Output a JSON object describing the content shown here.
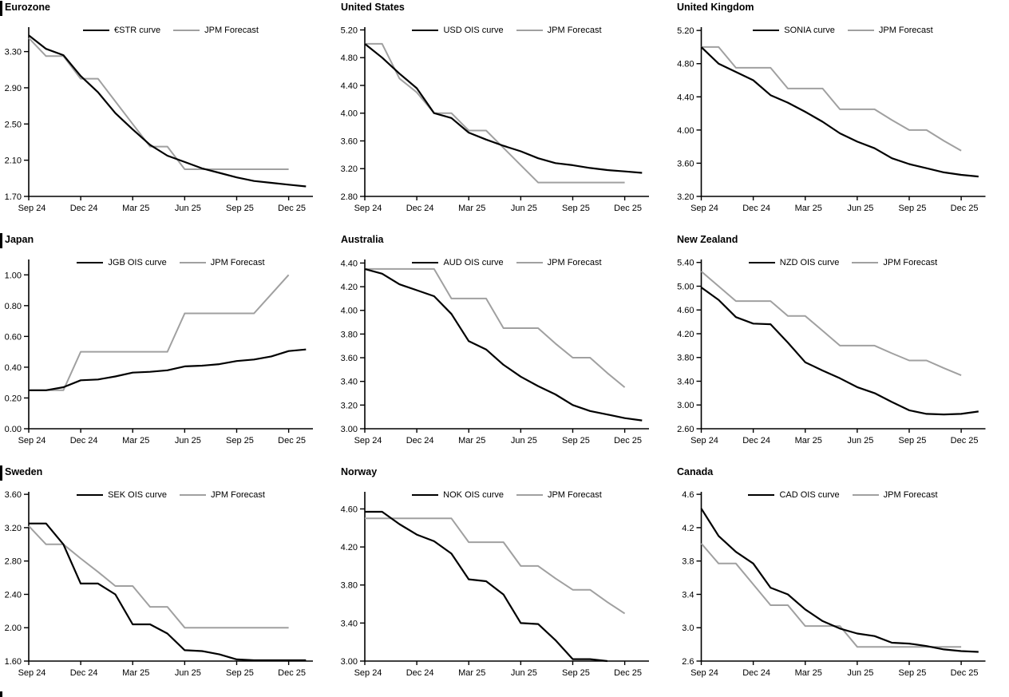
{
  "page": {
    "background": "#ffffff",
    "series_black_color": "#000000",
    "series_gray_color": "#a0a0a0"
  },
  "chart_data": [
    {
      "type": "line",
      "title": "Eurozone",
      "x_note": "monthly points starting Sep 2024",
      "x_tick_labels": [
        "Sep 24",
        "Dec 24",
        "Mar 25",
        "Jun 25",
        "Sep 25",
        "Dec 25"
      ],
      "x_tick_positions": [
        0,
        3,
        6,
        9,
        12,
        15
      ],
      "ylim": [
        1.7,
        3.57
      ],
      "y_tick_labels": [
        "1.70",
        "2.10",
        "2.50",
        "2.90",
        "3.30"
      ],
      "series": [
        {
          "name": "€STR curve",
          "color": "#000000",
          "values": [
            3.48,
            3.33,
            3.26,
            3.03,
            2.85,
            2.62,
            2.44,
            2.27,
            2.15,
            2.08,
            2.01,
            1.96,
            1.91,
            1.87,
            1.85,
            1.83,
            1.81
          ]
        },
        {
          "name": "JPM Forecast",
          "color": "#a0a0a0",
          "values": [
            3.45,
            3.25,
            3.25,
            3.0,
            3.0,
            2.75,
            2.5,
            2.25,
            2.25,
            2.0,
            2.0,
            2.0,
            2.0,
            2.0,
            2.0,
            2.0
          ]
        }
      ]
    },
    {
      "type": "line",
      "title": "United States",
      "x_note": "monthly points starting Sep 2024",
      "x_tick_labels": [
        "Sep 24",
        "Dec 24",
        "Mar 25",
        "Jun 25",
        "Sep 25",
        "Dec 25"
      ],
      "x_tick_positions": [
        0,
        3,
        6,
        9,
        12,
        15
      ],
      "ylim": [
        2.8,
        5.24
      ],
      "y_tick_labels": [
        "2.80",
        "3.20",
        "3.60",
        "4.00",
        "4.40",
        "4.80",
        "5.20"
      ],
      "series": [
        {
          "name": "USD OIS curve",
          "color": "#000000",
          "values": [
            5.0,
            4.8,
            4.57,
            4.36,
            4.0,
            3.93,
            3.72,
            3.62,
            3.53,
            3.45,
            3.35,
            3.28,
            3.25,
            3.21,
            3.18,
            3.16,
            3.14
          ]
        },
        {
          "name": "JPM Forecast",
          "color": "#a0a0a0",
          "values": [
            5.0,
            5.0,
            4.5,
            4.3,
            4.0,
            4.0,
            3.75,
            3.75,
            3.5,
            3.25,
            3.0,
            3.0,
            3.0,
            3.0,
            3.0,
            3.0
          ]
        }
      ]
    },
    {
      "type": "line",
      "title": "United Kingdom",
      "x_note": "monthly points starting Sep 2024",
      "x_tick_labels": [
        "Sep 24",
        "Dec 24",
        "Mar 25",
        "Jun 25",
        "Sep 25",
        "Dec 25"
      ],
      "x_tick_positions": [
        0,
        3,
        6,
        9,
        12,
        15
      ],
      "ylim": [
        3.2,
        5.24
      ],
      "y_tick_labels": [
        "3.20",
        "3.60",
        "4.00",
        "4.40",
        "4.80",
        "5.20"
      ],
      "series": [
        {
          "name": "SONIA curve",
          "color": "#000000",
          "values": [
            5.0,
            4.8,
            4.7,
            4.6,
            4.42,
            4.33,
            4.22,
            4.1,
            3.96,
            3.86,
            3.78,
            3.66,
            3.59,
            3.54,
            3.49,
            3.46,
            3.44
          ]
        },
        {
          "name": "JPM Forecast",
          "color": "#a0a0a0",
          "values": [
            5.0,
            5.0,
            4.75,
            4.75,
            4.75,
            4.5,
            4.5,
            4.5,
            4.25,
            4.25,
            4.25,
            4.12,
            4.0,
            4.0,
            3.87,
            3.75
          ]
        }
      ]
    },
    {
      "type": "line",
      "title": "Japan",
      "x_note": "monthly points starting Sep 2024",
      "x_tick_labels": [
        "Sep 24",
        "Dec 24",
        "Mar 25",
        "Jun 25",
        "Sep 25",
        "Dec 25"
      ],
      "x_tick_positions": [
        0,
        3,
        6,
        9,
        12,
        15
      ],
      "ylim": [
        0.0,
        1.1
      ],
      "y_tick_labels": [
        "0.00",
        "0.20",
        "0.40",
        "0.60",
        "0.80",
        "1.00"
      ],
      "series": [
        {
          "name": "JGB OIS curve",
          "color": "#000000",
          "values": [
            0.25,
            0.25,
            0.27,
            0.315,
            0.32,
            0.34,
            0.365,
            0.37,
            0.38,
            0.405,
            0.41,
            0.42,
            0.44,
            0.45,
            0.47,
            0.505,
            0.515
          ]
        },
        {
          "name": "JPM Forecast",
          "color": "#a0a0a0",
          "values": [
            0.25,
            0.25,
            0.25,
            0.5,
            0.5,
            0.5,
            0.5,
            0.5,
            0.5,
            0.75,
            0.75,
            0.75,
            0.75,
            0.75,
            0.875,
            1.0
          ]
        }
      ]
    },
    {
      "type": "line",
      "title": "Australia",
      "x_note": "monthly points starting Sep 2024",
      "x_tick_labels": [
        "Sep 24",
        "Dec 24",
        "Mar 25",
        "Jun 25",
        "Sep 25",
        "Dec 25"
      ],
      "x_tick_positions": [
        0,
        3,
        6,
        9,
        12,
        15
      ],
      "ylim": [
        3.0,
        4.43
      ],
      "y_tick_labels": [
        "3.00",
        "3.20",
        "3.40",
        "3.60",
        "3.80",
        "4.00",
        "4.20",
        "4.40"
      ],
      "series": [
        {
          "name": "AUD OIS curve",
          "color": "#000000",
          "values": [
            4.35,
            4.31,
            4.22,
            4.17,
            4.12,
            3.97,
            3.74,
            3.67,
            3.54,
            3.44,
            3.36,
            3.29,
            3.2,
            3.15,
            3.12,
            3.09,
            3.07
          ]
        },
        {
          "name": "JPM Forecast",
          "color": "#a0a0a0",
          "values": [
            4.35,
            4.35,
            4.35,
            4.35,
            4.35,
            4.1,
            4.1,
            4.1,
            3.85,
            3.85,
            3.85,
            3.72,
            3.6,
            3.6,
            3.47,
            3.35
          ]
        }
      ]
    },
    {
      "type": "line",
      "title": "New Zealand",
      "x_note": "monthly points starting Sep 2024",
      "x_tick_labels": [
        "Sep 24",
        "Dec 24",
        "Mar 25",
        "Jun 25",
        "Sep 25",
        "Dec 25"
      ],
      "x_tick_positions": [
        0,
        3,
        6,
        9,
        12,
        15
      ],
      "ylim": [
        2.6,
        5.45
      ],
      "y_tick_labels": [
        "2.60",
        "3.00",
        "3.40",
        "3.80",
        "4.20",
        "4.60",
        "5.00",
        "5.40"
      ],
      "series": [
        {
          "name": "NZD OIS curve",
          "color": "#000000",
          "values": [
            4.98,
            4.77,
            4.48,
            4.37,
            4.36,
            4.05,
            3.72,
            3.58,
            3.45,
            3.3,
            3.2,
            3.05,
            2.91,
            2.85,
            2.84,
            2.85,
            2.89
          ]
        },
        {
          "name": "JPM Forecast",
          "color": "#a0a0a0",
          "values": [
            5.25,
            5.0,
            4.75,
            4.75,
            4.75,
            4.5,
            4.5,
            4.25,
            4.0,
            4.0,
            4.0,
            3.87,
            3.75,
            3.75,
            3.62,
            3.5
          ]
        }
      ]
    },
    {
      "type": "line",
      "title": "Sweden",
      "x_note": "monthly points starting Sep 2024",
      "x_tick_labels": [
        "Sep 24",
        "Dec 24",
        "Mar 25",
        "Jun 25",
        "Sep 25",
        "Dec 25"
      ],
      "x_tick_positions": [
        0,
        3,
        6,
        9,
        12,
        15
      ],
      "ylim": [
        1.6,
        3.63
      ],
      "y_tick_labels": [
        "1.60",
        "2.00",
        "2.40",
        "2.80",
        "3.20",
        "3.60"
      ],
      "series": [
        {
          "name": "SEK OIS curve",
          "color": "#000000",
          "values": [
            3.25,
            3.25,
            3.0,
            2.53,
            2.53,
            2.4,
            2.04,
            2.04,
            1.93,
            1.73,
            1.72,
            1.68,
            1.62,
            1.61,
            1.61,
            1.61,
            1.61
          ]
        },
        {
          "name": "JPM Forecast",
          "color": "#a0a0a0",
          "values": [
            3.22,
            3.0,
            3.0,
            2.83,
            2.67,
            2.5,
            2.5,
            2.25,
            2.25,
            2.0,
            2.0,
            2.0,
            2.0,
            2.0,
            2.0,
            2.0
          ]
        }
      ]
    },
    {
      "type": "line",
      "title": "Norway",
      "x_note": "monthly points starting Sep 2024",
      "x_tick_labels": [
        "Sep 24",
        "Dec 24",
        "Mar 25",
        "Jun 25",
        "Sep 25",
        "Dec 25"
      ],
      "x_tick_positions": [
        0,
        3,
        6,
        9,
        12,
        15
      ],
      "ylim": [
        3.0,
        4.78
      ],
      "y_tick_labels": [
        "3.00",
        "3.40",
        "3.80",
        "4.20",
        "4.60"
      ],
      "series": [
        {
          "name": "NOK OIS curve",
          "color": "#000000",
          "values": [
            4.57,
            4.57,
            4.44,
            4.33,
            4.26,
            4.13,
            3.86,
            3.84,
            3.7,
            3.4,
            3.39,
            3.22,
            3.02,
            3.02,
            3.0
          ]
        },
        {
          "name": "JPM Forecast",
          "color": "#a0a0a0",
          "values": [
            4.5,
            4.5,
            4.5,
            4.5,
            4.5,
            4.5,
            4.25,
            4.25,
            4.25,
            4.0,
            4.0,
            3.87,
            3.75,
            3.75,
            3.62,
            3.5
          ]
        }
      ]
    },
    {
      "type": "line",
      "title": "Canada",
      "x_note": "monthly points starting Sep 2024",
      "x_tick_labels": [
        "Sep 24",
        "Dec 24",
        "Mar 25",
        "Jun 25",
        "Sep 25",
        "Dec 25"
      ],
      "x_tick_positions": [
        0,
        3,
        6,
        9,
        12,
        15
      ],
      "ylim": [
        2.6,
        4.63
      ],
      "y_tick_labels": [
        "2.6",
        "3.0",
        "3.4",
        "3.8",
        "4.2",
        "4.6"
      ],
      "series": [
        {
          "name": "CAD OIS curve",
          "color": "#000000",
          "values": [
            4.43,
            4.1,
            3.91,
            3.77,
            3.48,
            3.4,
            3.22,
            3.08,
            2.99,
            2.93,
            2.9,
            2.82,
            2.81,
            2.78,
            2.74,
            2.72,
            2.71
          ]
        },
        {
          "name": "JPM Forecast",
          "color": "#a0a0a0",
          "values": [
            4.01,
            3.77,
            3.77,
            3.52,
            3.27,
            3.27,
            3.02,
            3.02,
            3.02,
            2.77,
            2.77,
            2.77,
            2.77,
            2.77,
            2.77,
            2.77
          ]
        }
      ]
    }
  ]
}
